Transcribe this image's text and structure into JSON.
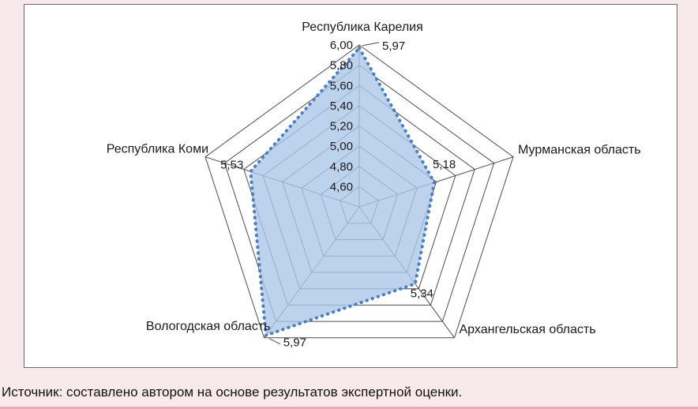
{
  "page": {
    "background": "#f8e9ec",
    "caption": "Источник: составлено автором на основе результатов экспертной оценки."
  },
  "chart_data": {
    "type": "radar",
    "title": "",
    "categories": [
      "Республика Карелия",
      "Мурманская область",
      "Архангельская область",
      "Вологодская область",
      "Республика Коми"
    ],
    "values": [
      5.97,
      5.18,
      5.34,
      5.97,
      5.53
    ],
    "value_labels": [
      "5,97",
      "5,18",
      "5,34",
      "5,97",
      "5,53"
    ],
    "axis": {
      "min": 4.4,
      "max": 6.0,
      "step": 0.2,
      "tick_labels": [
        "6,00",
        "5,80",
        "5,60",
        "5,40",
        "5,20",
        "5,00",
        "4,80",
        "4,60"
      ]
    },
    "legend": "none",
    "grid": true,
    "style": {
      "fill": "#adc7e8",
      "fill_opacity": 0.8,
      "outline": "#4a80bd",
      "grid_color": "#4d4d4d",
      "plot_background": "#ffffff"
    }
  }
}
